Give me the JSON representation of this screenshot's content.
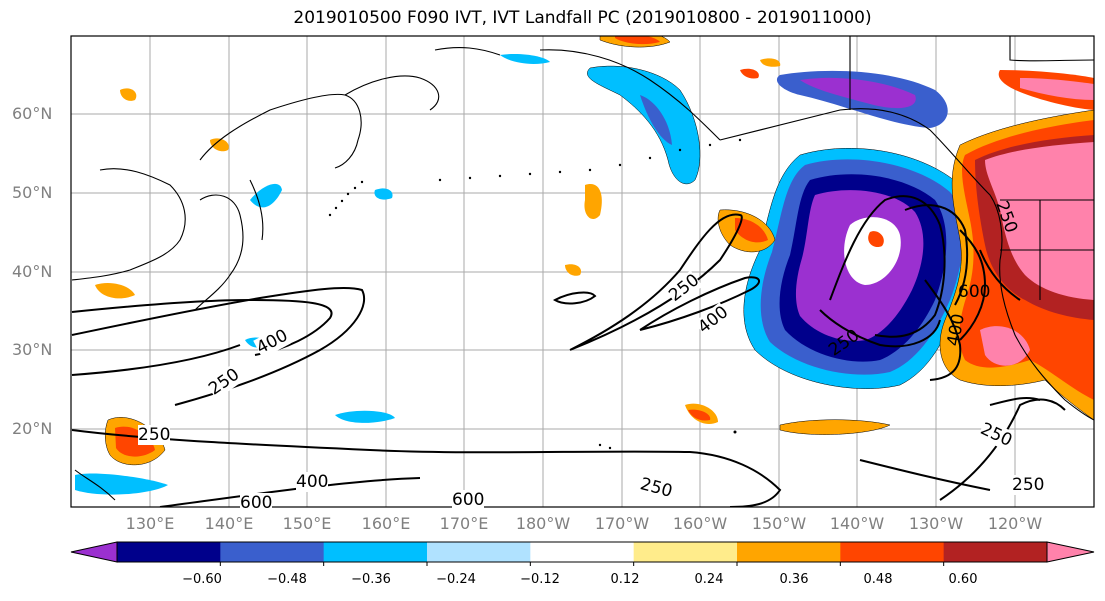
{
  "title": "2019010500 F090 IVT, IVT Landfall PC (2019010800 - 2019011000)",
  "lat_labels": [
    "60°N",
    "50°N",
    "40°N",
    "30°N",
    "20°N"
  ],
  "lon_labels": [
    "130°E",
    "140°E",
    "150°E",
    "160°E",
    "170°E",
    "180°W",
    "170°W",
    "160°W",
    "150°W",
    "140°W",
    "130°W",
    "120°W"
  ],
  "colorbar": {
    "colors": [
      "#9b30d0",
      "#00008b",
      "#3a5fcd",
      "#00bfff",
      "#b0e2ff",
      "#ffffff",
      "#ffec8b",
      "#ffa500",
      "#ff4500",
      "#b22222",
      "#ff82ab"
    ],
    "tick_labels": [
      "−0.60",
      "−0.48",
      "−0.36",
      "−0.24",
      "−0.12",
      "0.12",
      "0.24",
      "0.36",
      "0.48",
      "0.60"
    ]
  },
  "contour_labels": [
    "250",
    "400",
    "250",
    "250",
    "400",
    "600",
    "250",
    "400",
    "250",
    "600",
    "400",
    "250",
    "600",
    "250",
    "250"
  ]
}
